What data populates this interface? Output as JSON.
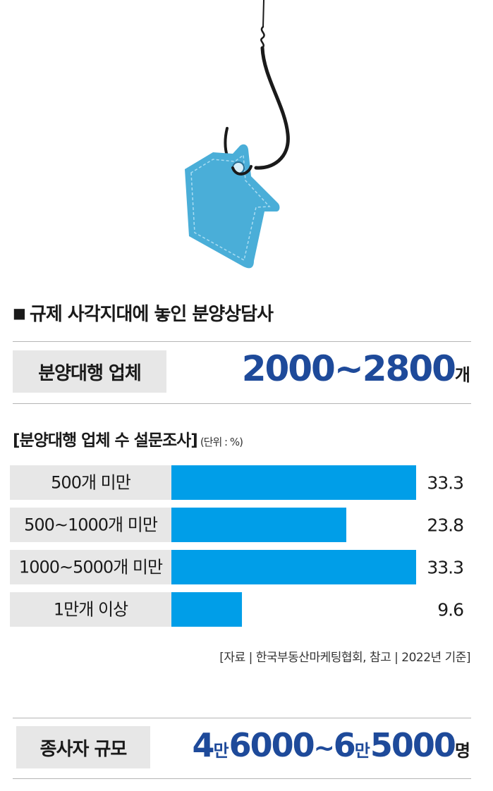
{
  "colors": {
    "accent": "#1e4a9a",
    "bar": "#009ee8",
    "label_bg": "#e7e7e7",
    "tag": "#4aaed8"
  },
  "header": {
    "title": "규제 사각지대에 놓인 분양상담사"
  },
  "agencies": {
    "label": "분양대행 업체",
    "value": "2000~2800",
    "unit": "개"
  },
  "survey": {
    "title": "[분양대행 업체 수 설문조사]",
    "unit_note": "(단위 : %)"
  },
  "chart_data": {
    "type": "bar",
    "orientation": "horizontal",
    "title": "[분양대행 업체 수 설문조사]",
    "unit": "%",
    "categories": [
      "500개 미만",
      "500~1000개 미만",
      "1000~5000개 미만",
      "1만개 이상"
    ],
    "values": [
      33.3,
      23.8,
      33.3,
      9.6
    ],
    "value_labels": [
      "33.3",
      "23.8",
      "33.3",
      "9.6"
    ],
    "xlim": [
      0,
      33.3
    ],
    "grid": false,
    "legend": "none"
  },
  "source": "[자료 | 한국부동산마케팅협회, 참고 | 2022년 기준]",
  "staff": {
    "label": "종사자 규모",
    "parts": [
      "4",
      "만",
      "6000",
      "~",
      "6",
      "만",
      "5000"
    ],
    "unit": "명"
  }
}
